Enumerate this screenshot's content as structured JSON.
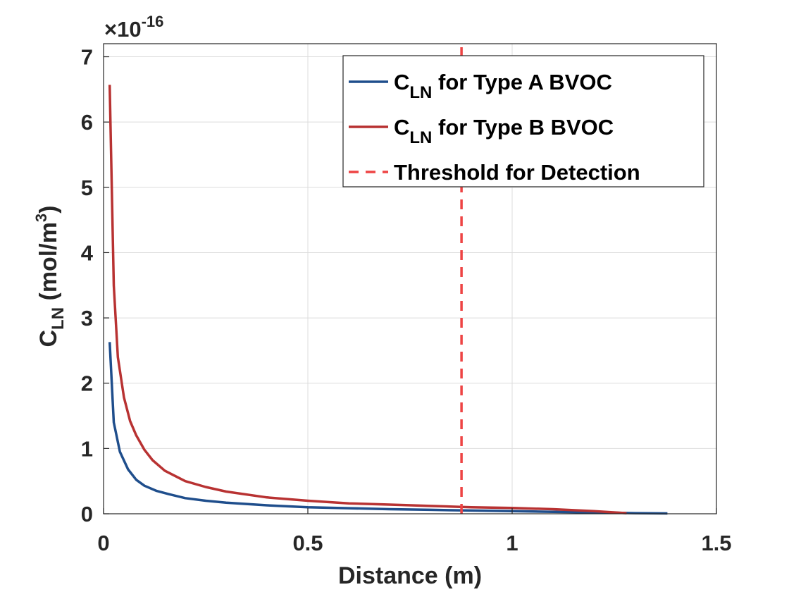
{
  "chart_data": {
    "type": "line",
    "xlabel": "Distance (m)",
    "ylabel": {
      "base": "C",
      "sub": "LN",
      "unit_pre": " (mol/m",
      "unit_sup": "3",
      "unit_post": ")"
    },
    "xlim": [
      0,
      1.5
    ],
    "ylim": [
      0,
      7.2
    ],
    "x_ticks": [
      "0",
      "0.5",
      "1",
      "1.5"
    ],
    "y_ticks": [
      "0",
      "1",
      "2",
      "3",
      "4",
      "5",
      "6",
      "7"
    ],
    "y_multiplier": {
      "base": "×10",
      "exp": "-16"
    },
    "grid": true,
    "legend_position": "top-right",
    "series": [
      {
        "name": {
          "base": "C",
          "sub": "LN",
          "rest": " for Type A BVOC"
        },
        "color": "#1f4e8c",
        "style": "solid",
        "x": [
          0.015,
          0.025,
          0.04,
          0.06,
          0.08,
          0.1,
          0.13,
          0.16,
          0.2,
          0.25,
          0.3,
          0.4,
          0.5,
          0.6,
          0.7,
          0.8,
          0.9,
          1.0,
          1.1,
          1.2,
          1.3,
          1.38
        ],
        "y": [
          2.63,
          1.4,
          0.95,
          0.68,
          0.52,
          0.43,
          0.35,
          0.3,
          0.24,
          0.2,
          0.17,
          0.13,
          0.1,
          0.085,
          0.07,
          0.06,
          0.05,
          0.04,
          0.03,
          0.02,
          0.01,
          0.005
        ]
      },
      {
        "name": {
          "base": "C",
          "sub": "LN",
          "rest": " for Type B BVOC"
        },
        "color": "#b83232",
        "style": "solid",
        "x": [
          0.015,
          0.025,
          0.035,
          0.05,
          0.065,
          0.08,
          0.1,
          0.12,
          0.15,
          0.2,
          0.25,
          0.3,
          0.4,
          0.5,
          0.6,
          0.7,
          0.8,
          0.9,
          1.0,
          1.1,
          1.2,
          1.28
        ],
        "y": [
          6.57,
          3.5,
          2.4,
          1.78,
          1.42,
          1.2,
          0.98,
          0.82,
          0.66,
          0.5,
          0.41,
          0.34,
          0.25,
          0.2,
          0.16,
          0.14,
          0.12,
          0.1,
          0.09,
          0.07,
          0.04,
          0.01
        ]
      },
      {
        "name": {
          "base": "Threshold for Detection",
          "sub": "",
          "rest": ""
        },
        "color": "#ee4444",
        "style": "dashed",
        "x": [
          0.876,
          0.876
        ],
        "y": [
          0,
          7.2
        ]
      }
    ]
  }
}
